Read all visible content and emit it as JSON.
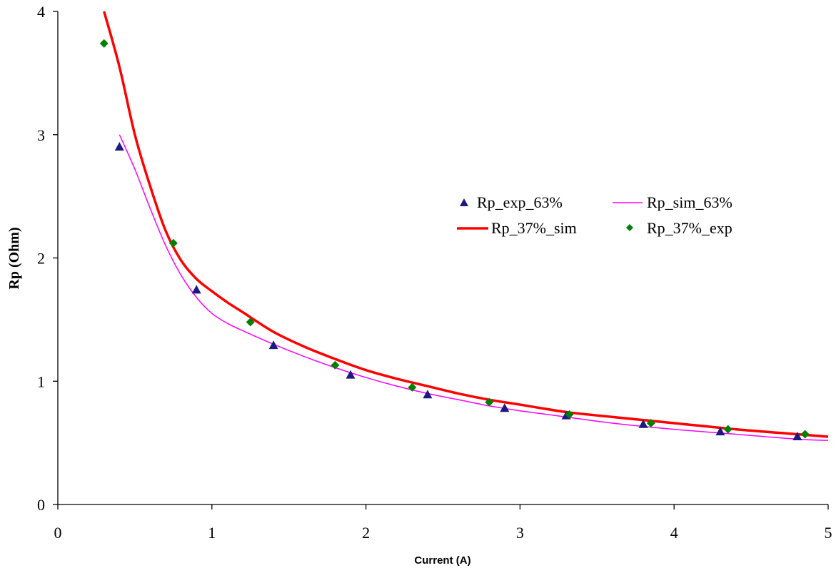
{
  "chart_data": {
    "type": "scatter",
    "title": "",
    "xlabel": "Current (A)",
    "ylabel": "Rp (Ohm)",
    "xlim": [
      0,
      5
    ],
    "ylim": [
      0,
      4
    ],
    "xticks": [
      0,
      1,
      2,
      3,
      4,
      5
    ],
    "yticks": [
      0,
      1,
      2,
      3,
      4
    ],
    "grid": false,
    "legend_position": "right",
    "series": [
      {
        "name": "Rp_exp_63%",
        "kind": "markers",
        "marker": "triangle",
        "color": "#1a1a80",
        "x": [
          0.4,
          0.9,
          1.4,
          1.9,
          2.4,
          2.9,
          3.3,
          3.8,
          4.3,
          4.8
        ],
        "y": [
          2.9,
          1.74,
          1.29,
          1.05,
          0.89,
          0.78,
          0.72,
          0.65,
          0.59,
          0.55
        ]
      },
      {
        "name": "Rp_sim_63%",
        "kind": "line",
        "color": "#ff00ff",
        "width": 1.5,
        "x": [
          0.4,
          0.5,
          0.6,
          0.7,
          0.8,
          0.9,
          1.0,
          1.1,
          1.2,
          1.4,
          1.6,
          1.8,
          2.0,
          2.2,
          2.4,
          2.6,
          2.8,
          3.0,
          3.3,
          3.6,
          4.0,
          4.4,
          4.8,
          5.0
        ],
        "y": [
          3.0,
          2.72,
          2.4,
          2.1,
          1.86,
          1.68,
          1.55,
          1.47,
          1.41,
          1.3,
          1.2,
          1.11,
          1.03,
          0.96,
          0.9,
          0.85,
          0.8,
          0.76,
          0.71,
          0.66,
          0.61,
          0.57,
          0.53,
          0.52
        ]
      },
      {
        "name": "Rp_37%_sim",
        "kind": "line",
        "color": "#ff0000",
        "width": 3.5,
        "x": [
          0.3,
          0.4,
          0.5,
          0.6,
          0.7,
          0.8,
          0.9,
          1.0,
          1.1,
          1.2,
          1.4,
          1.6,
          1.8,
          2.0,
          2.2,
          2.4,
          2.6,
          2.8,
          3.0,
          3.3,
          3.6,
          4.0,
          4.4,
          4.8,
          5.0
        ],
        "y": [
          4.0,
          3.55,
          3.0,
          2.58,
          2.22,
          1.98,
          1.83,
          1.73,
          1.64,
          1.56,
          1.4,
          1.28,
          1.18,
          1.09,
          1.02,
          0.96,
          0.9,
          0.85,
          0.81,
          0.75,
          0.71,
          0.66,
          0.61,
          0.57,
          0.55
        ]
      },
      {
        "name": "Rp_37%_exp",
        "kind": "markers",
        "marker": "diamond",
        "color": "#008000",
        "x": [
          0.3,
          0.75,
          1.25,
          1.8,
          2.3,
          2.8,
          3.32,
          3.85,
          4.35,
          4.85
        ],
        "y": [
          3.74,
          2.12,
          1.48,
          1.13,
          0.95,
          0.83,
          0.73,
          0.66,
          0.61,
          0.57
        ]
      }
    ]
  }
}
